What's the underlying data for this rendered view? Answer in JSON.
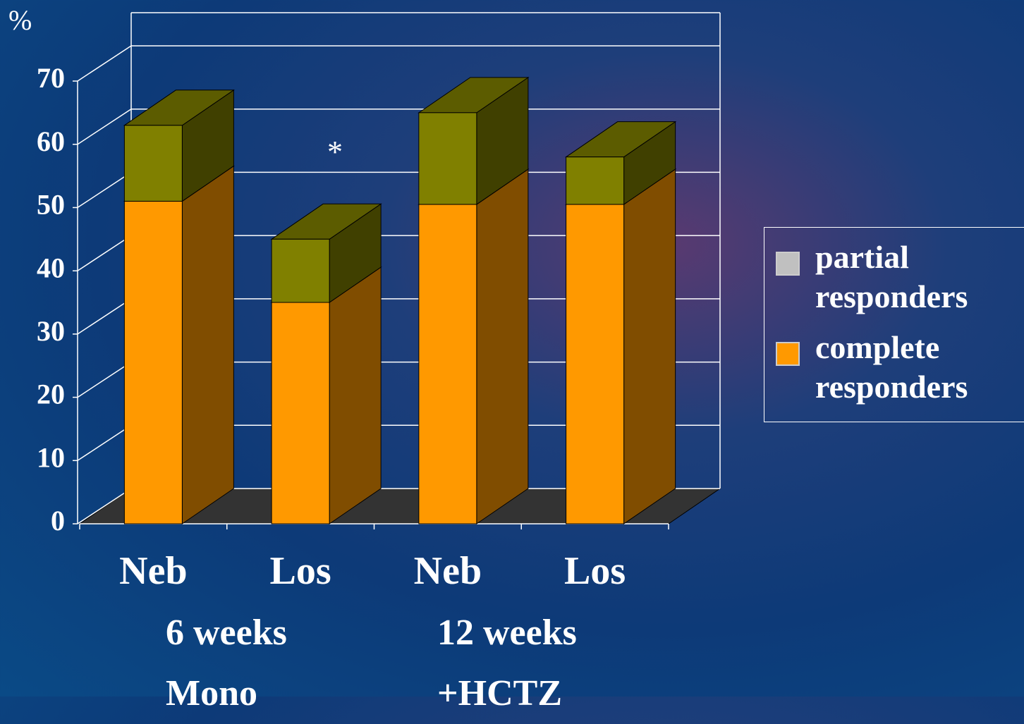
{
  "chart_data": {
    "type": "bar3d_stacked",
    "y_label": "%",
    "annotation": "*",
    "categories": [
      "Neb",
      "Los",
      "Neb",
      "Los"
    ],
    "groups": [
      "6 weeks\nMono",
      "12 weeks\n+HCTZ"
    ],
    "series": [
      {
        "name": "partial responders",
        "color": "#808000",
        "legend_color": "#c0c0c0",
        "values": [
          12,
          10,
          14.5,
          7.5
        ]
      },
      {
        "name": "complete responders",
        "color": "#ff9900",
        "legend_color": "#ff9900",
        "values": [
          51,
          35,
          50.5,
          50.5
        ]
      }
    ],
    "stack_order": "last-at-bottom",
    "ylim": [
      0,
      70
    ],
    "yticks": [
      0,
      10,
      20,
      30,
      40,
      50,
      60,
      70
    ],
    "grid": true
  }
}
